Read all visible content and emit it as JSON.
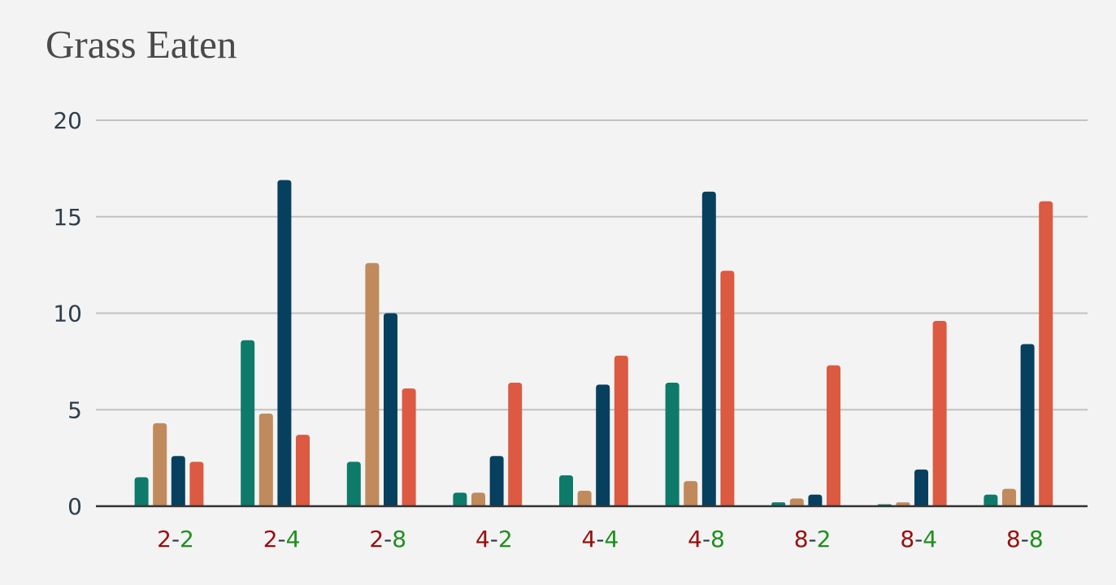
{
  "chart_data": {
    "type": "bar",
    "title": "Grass Eaten",
    "xlabel": "",
    "ylabel": "",
    "ylim": [
      0,
      20
    ],
    "yticks": [
      0,
      5,
      10,
      15,
      20
    ],
    "grid": true,
    "legend": "none",
    "categories": [
      {
        "first": "2",
        "sep": "-",
        "second": "2"
      },
      {
        "first": "2",
        "sep": "-",
        "second": "4"
      },
      {
        "first": "2",
        "sep": "-",
        "second": "8"
      },
      {
        "first": "4",
        "sep": "-",
        "second": "2"
      },
      {
        "first": "4",
        "sep": "-",
        "second": "4"
      },
      {
        "first": "4",
        "sep": "-",
        "second": "8"
      },
      {
        "first": "8",
        "sep": "-",
        "second": "2"
      },
      {
        "first": "8",
        "sep": "-",
        "second": "4"
      },
      {
        "first": "8",
        "sep": "-",
        "second": "8"
      }
    ],
    "category_label_colors": {
      "first": "#9b0d0d",
      "sep": "#2f3e4c",
      "second": "#1f8f1f"
    },
    "series": [
      {
        "color": "#0e7a6a",
        "values": [
          1.5,
          8.6,
          2.3,
          0.7,
          1.6,
          6.4,
          0.2,
          0.1,
          0.6
        ]
      },
      {
        "color": "#c08a5c",
        "values": [
          4.3,
          4.8,
          12.6,
          0.7,
          0.8,
          1.3,
          0.4,
          0.2,
          0.9
        ]
      },
      {
        "color": "#07405e",
        "values": [
          2.6,
          16.9,
          10.0,
          2.6,
          6.3,
          16.3,
          0.6,
          1.9,
          8.4
        ]
      },
      {
        "color": "#db5a41",
        "values": [
          2.3,
          3.7,
          6.1,
          6.4,
          7.8,
          12.2,
          7.3,
          9.6,
          15.8
        ]
      }
    ]
  }
}
